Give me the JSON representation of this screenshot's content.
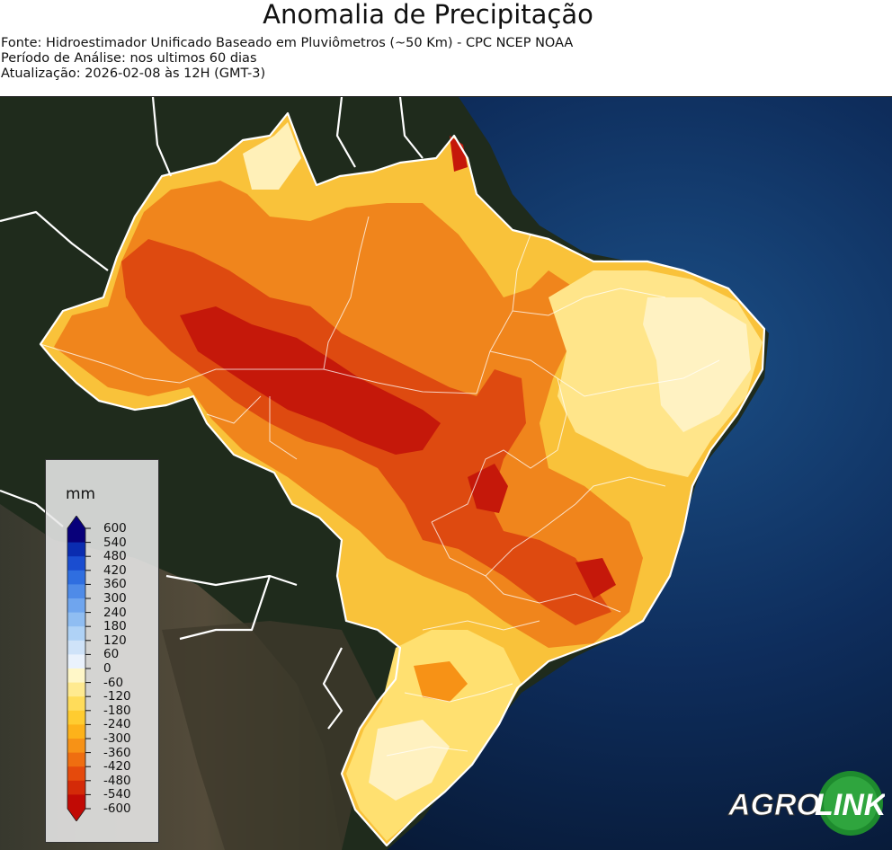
{
  "title": "Anomalia de Precipitação",
  "subtitle_lines": [
    "Fonte: Hidroestimador Unificado Baseado em Pluviômetros (~50 Km) - CPC NCEP NOAA",
    "Período de Análise: nos ultimos 60 dias",
    "Atualização: 2026-02-08 às 12H (GMT-3)"
  ],
  "legend": {
    "unit": "mm",
    "ticks": [
      "600",
      "540",
      "480",
      "420",
      "360",
      "300",
      "240",
      "180",
      "120",
      "60",
      "0",
      "-60",
      "-120",
      "-180",
      "-240",
      "-300",
      "-360",
      "-420",
      "-480",
      "-540",
      "-600"
    ],
    "colors": [
      "#08007a",
      "#0a2cb0",
      "#1a4dd0",
      "#2f6ee0",
      "#4f8be8",
      "#6fa5ee",
      "#8fbdf2",
      "#afd2f6",
      "#cfe3f9",
      "#eaf2fc",
      "#ffffff",
      "#fff7c8",
      "#ffea90",
      "#ffdc5a",
      "#ffcc30",
      "#fdb21a",
      "#f79216",
      "#ef6e10",
      "#e54a0c",
      "#d42a08",
      "#c10a05"
    ]
  },
  "logo": {
    "part1": "AGRO",
    "part2": "LINK"
  },
  "colors": {
    "ocean": "#0a2246",
    "land": "#22301f",
    "border": "#ffffff"
  }
}
